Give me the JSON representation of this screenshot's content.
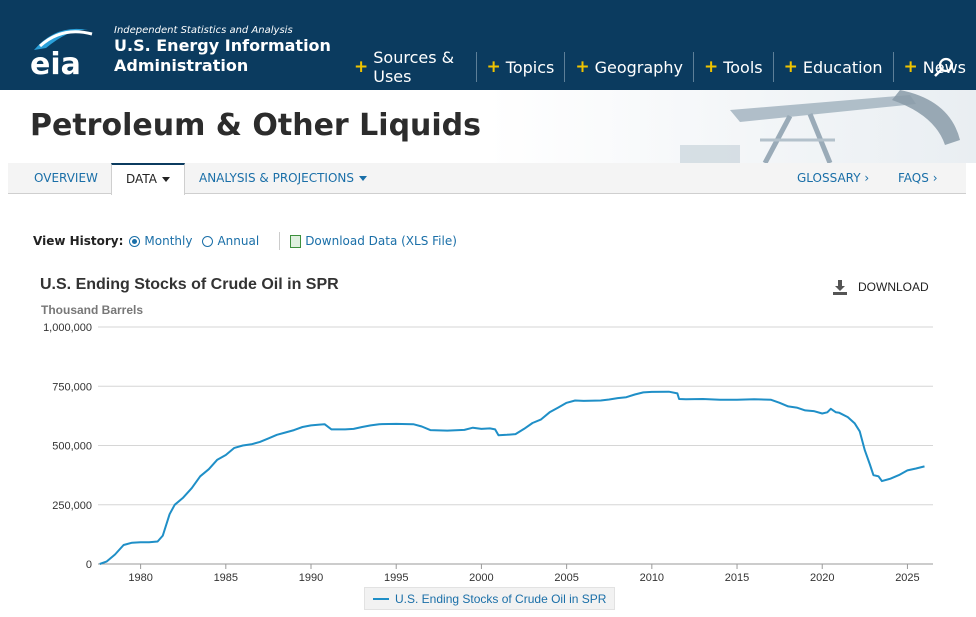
{
  "header": {
    "logo_tagline": "Independent Statistics and Analysis",
    "logo_name_line1": "U.S. Energy Information",
    "logo_name_line2": "Administration",
    "logo_mark": "eia",
    "nav": [
      {
        "label": "Sources & Uses"
      },
      {
        "label": "Topics"
      },
      {
        "label": "Geography"
      },
      {
        "label": "Tools"
      },
      {
        "label": "Education"
      },
      {
        "label": "News"
      }
    ],
    "search_icon": "search-icon"
  },
  "banner": {
    "title": "Petroleum & Other Liquids"
  },
  "subnav": {
    "overview": "OVERVIEW",
    "data": "DATA",
    "analysis": "ANALYSIS & PROJECTIONS",
    "glossary": "GLOSSARY",
    "faqs": "FAQS"
  },
  "view_history": {
    "label": "View History:",
    "monthly": "Monthly",
    "annual": "Annual",
    "download": "Download Data (XLS File)"
  },
  "download_label": "DOWNLOAD",
  "colors": {
    "header_bg": "#0b3b5f",
    "accent": "#f0c400",
    "link": "#1a6fa8",
    "series": "#1f8fc7"
  },
  "chart_data": {
    "type": "line",
    "title": "U.S. Ending Stocks of Crude Oil in SPR",
    "ylabel": "Thousand Barrels",
    "xlabel": "",
    "xlim": [
      1977.5,
      2026.5
    ],
    "ylim": [
      0,
      1000000
    ],
    "yticks": [
      0,
      250000,
      500000,
      750000,
      1000000
    ],
    "ytick_labels": [
      "0",
      "250,000",
      "500,000",
      "750,000",
      "1,000,000"
    ],
    "xticks": [
      1980,
      1985,
      1990,
      1995,
      2000,
      2005,
      2010,
      2015,
      2020,
      2025
    ],
    "xtick_labels": [
      "1980",
      "1985",
      "1990",
      "1995",
      "2000",
      "2005",
      "2010",
      "2015",
      "2020",
      "2025"
    ],
    "grid": true,
    "legend_position": "bottom",
    "series": [
      {
        "name": "U.S. Ending Stocks of Crude Oil in SPR",
        "points": [
          [
            1977.6,
            0
          ],
          [
            1978.0,
            10000
          ],
          [
            1978.5,
            40000
          ],
          [
            1979.0,
            80000
          ],
          [
            1979.5,
            90000
          ],
          [
            1980.0,
            92000
          ],
          [
            1980.5,
            92000
          ],
          [
            1981.0,
            95000
          ],
          [
            1981.3,
            120000
          ],
          [
            1981.7,
            210000
          ],
          [
            1982.0,
            250000
          ],
          [
            1982.5,
            280000
          ],
          [
            1983.0,
            320000
          ],
          [
            1983.5,
            370000
          ],
          [
            1984.0,
            400000
          ],
          [
            1984.5,
            440000
          ],
          [
            1985.0,
            460000
          ],
          [
            1985.5,
            490000
          ],
          [
            1986.0,
            500000
          ],
          [
            1986.5,
            505000
          ],
          [
            1987.0,
            515000
          ],
          [
            1987.5,
            530000
          ],
          [
            1988.0,
            545000
          ],
          [
            1988.5,
            555000
          ],
          [
            1989.0,
            565000
          ],
          [
            1989.5,
            578000
          ],
          [
            1990.0,
            585000
          ],
          [
            1990.5,
            588000
          ],
          [
            1990.8,
            590000
          ],
          [
            1991.2,
            568000
          ],
          [
            1992.0,
            568000
          ],
          [
            1992.5,
            570000
          ],
          [
            1993.0,
            578000
          ],
          [
            1993.5,
            585000
          ],
          [
            1994.0,
            590000
          ],
          [
            1995.0,
            591000
          ],
          [
            1996.0,
            590000
          ],
          [
            1996.5,
            580000
          ],
          [
            1997.0,
            565000
          ],
          [
            1998.0,
            563000
          ],
          [
            1999.0,
            566000
          ],
          [
            1999.5,
            575000
          ],
          [
            2000.0,
            570000
          ],
          [
            2000.5,
            572000
          ],
          [
            2000.8,
            568000
          ],
          [
            2001.0,
            543000
          ],
          [
            2001.5,
            545000
          ],
          [
            2002.0,
            548000
          ],
          [
            2002.5,
            570000
          ],
          [
            2003.0,
            595000
          ],
          [
            2003.5,
            610000
          ],
          [
            2004.0,
            640000
          ],
          [
            2004.5,
            660000
          ],
          [
            2005.0,
            680000
          ],
          [
            2005.5,
            690000
          ],
          [
            2006.0,
            688000
          ],
          [
            2007.0,
            690000
          ],
          [
            2007.5,
            694000
          ],
          [
            2008.0,
            700000
          ],
          [
            2008.5,
            704000
          ],
          [
            2009.0,
            715000
          ],
          [
            2009.5,
            724000
          ],
          [
            2010.0,
            726000
          ],
          [
            2011.0,
            727000
          ],
          [
            2011.5,
            720000
          ],
          [
            2011.6,
            696000
          ],
          [
            2012.0,
            695000
          ],
          [
            2013.0,
            696000
          ],
          [
            2014.0,
            693000
          ],
          [
            2015.0,
            693000
          ],
          [
            2016.0,
            695000
          ],
          [
            2017.0,
            693000
          ],
          [
            2017.5,
            680000
          ],
          [
            2018.0,
            665000
          ],
          [
            2018.5,
            660000
          ],
          [
            2019.0,
            648000
          ],
          [
            2019.5,
            645000
          ],
          [
            2020.0,
            635000
          ],
          [
            2020.3,
            640000
          ],
          [
            2020.5,
            655000
          ],
          [
            2020.8,
            640000
          ],
          [
            2021.0,
            638000
          ],
          [
            2021.5,
            620000
          ],
          [
            2021.9,
            594000
          ],
          [
            2022.2,
            560000
          ],
          [
            2022.5,
            480000
          ],
          [
            2022.8,
            420000
          ],
          [
            2023.0,
            375000
          ],
          [
            2023.3,
            370000
          ],
          [
            2023.5,
            350000
          ],
          [
            2024.0,
            360000
          ],
          [
            2024.5,
            375000
          ],
          [
            2025.0,
            395000
          ],
          [
            2025.5,
            403000
          ],
          [
            2026.0,
            412000
          ]
        ]
      }
    ]
  }
}
